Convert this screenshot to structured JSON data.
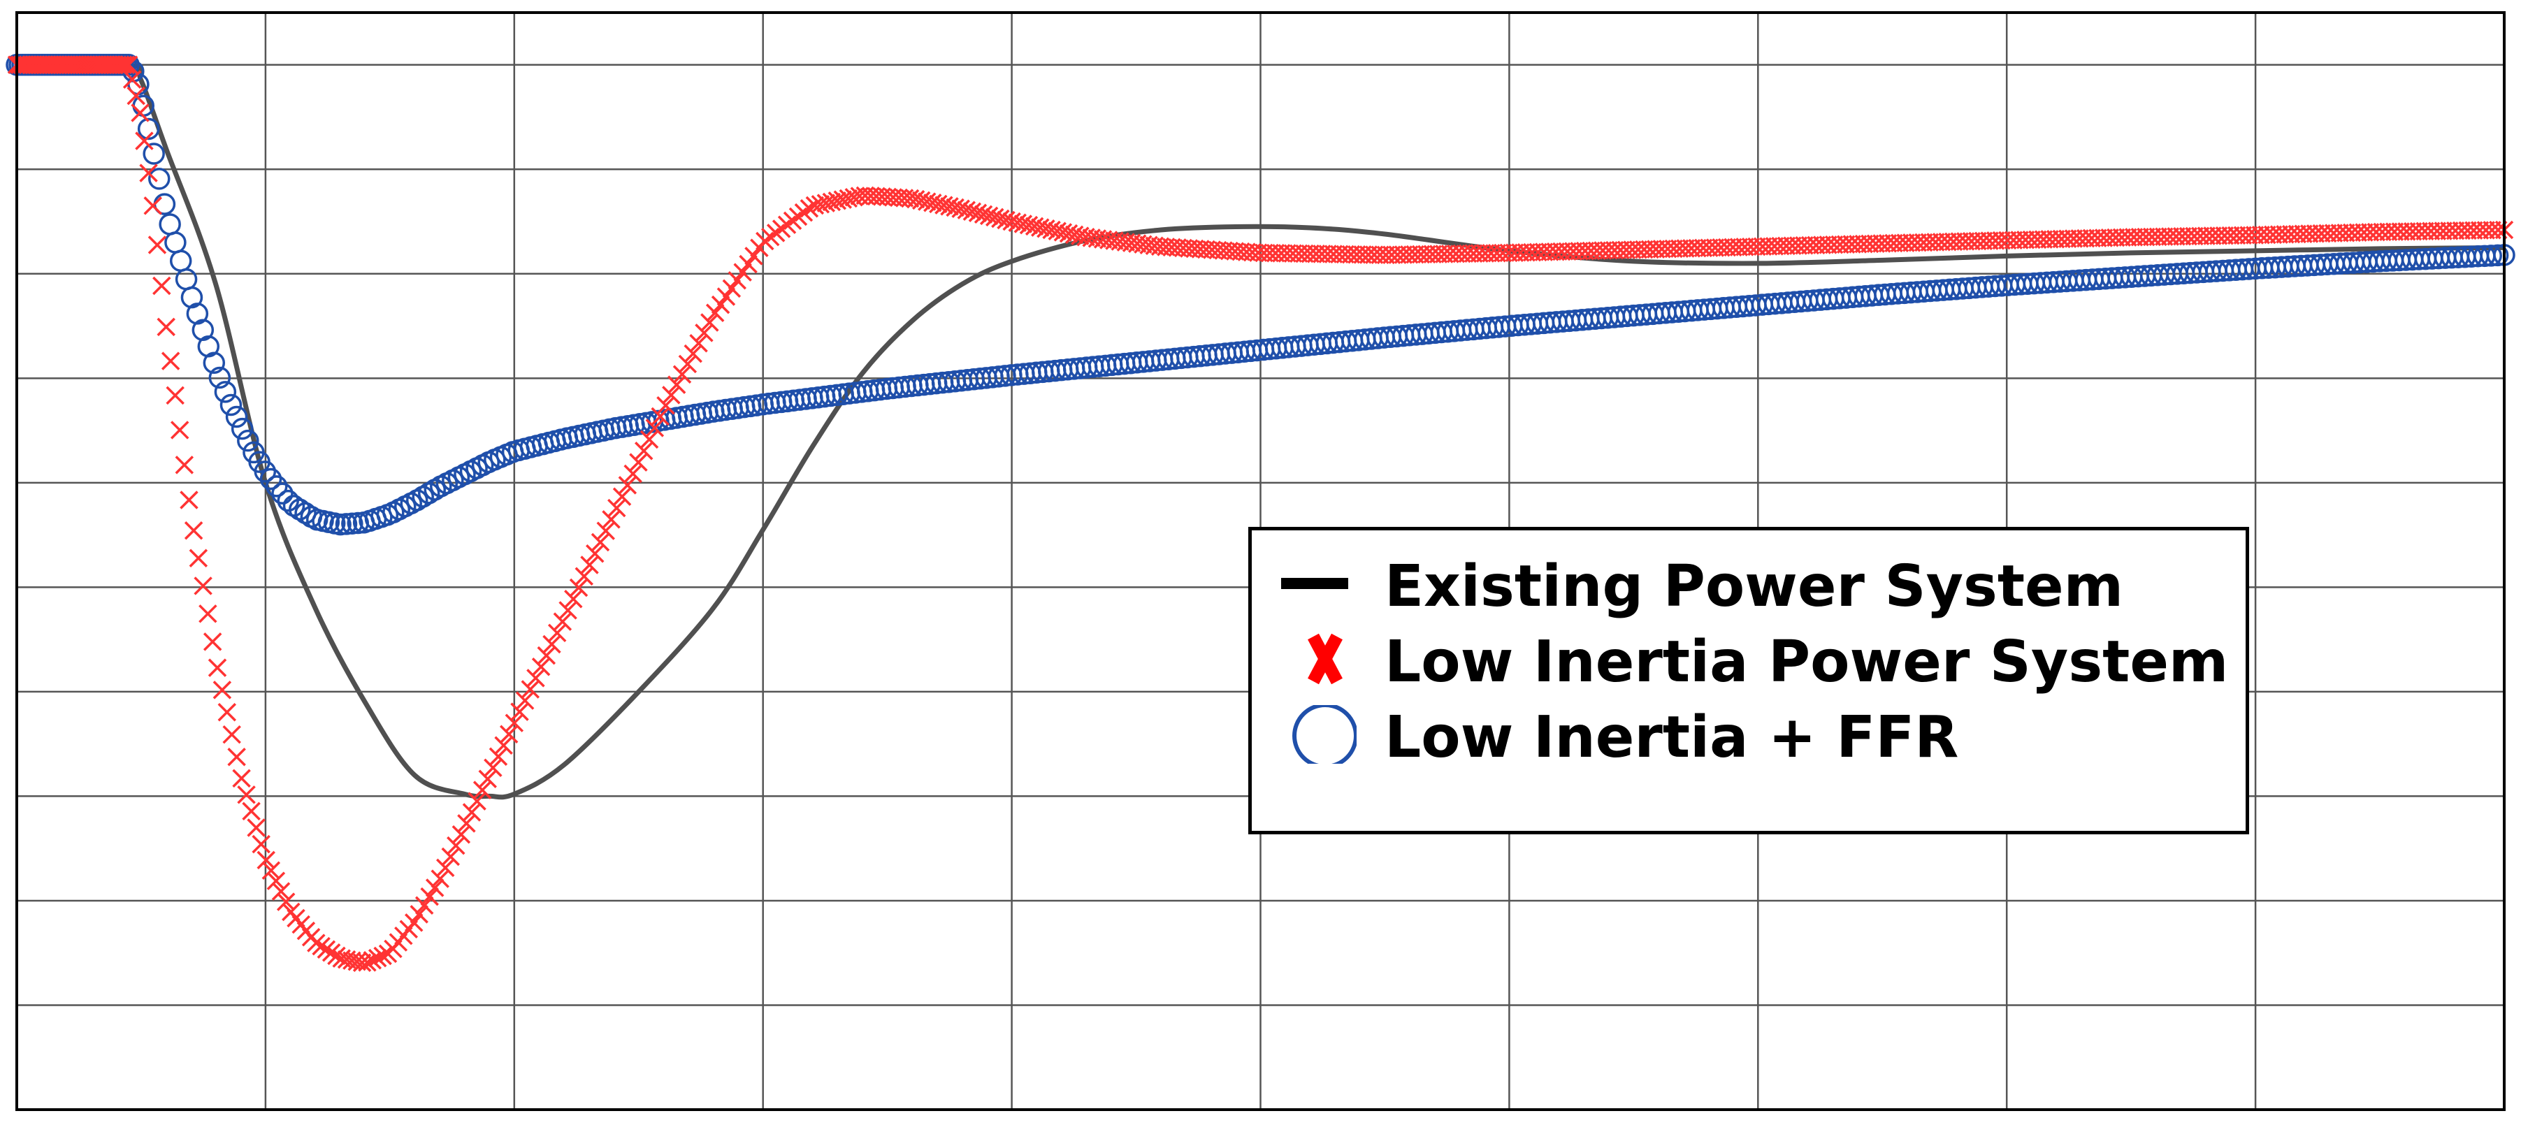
{
  "chart_data": {
    "type": "scatter",
    "title": "",
    "xlabel": "",
    "ylabel": "",
    "xlim": [
      0,
      10
    ],
    "ylim": [
      0,
      10.5
    ],
    "grid": true,
    "tick_labels_visible": false,
    "legend_position": "center-right",
    "series": [
      {
        "name": "Existing Power System",
        "marker": "line",
        "color": "#505050",
        "x": [
          0,
          0.45,
          0.5,
          0.6,
          0.8,
          1.0,
          1.2,
          1.4,
          1.6,
          1.8,
          1.9,
          2.0,
          2.2,
          2.5,
          2.8,
          3.0,
          3.2,
          3.4,
          3.6,
          3.8,
          4.0,
          4.3,
          4.6,
          4.9,
          5.2,
          5.5,
          6.0,
          6.5,
          7.0,
          7.5,
          8.0,
          8.5,
          9.0,
          9.5,
          10.0
        ],
        "values": [
          10.0,
          10.0,
          9.85,
          9.2,
          7.9,
          6.0,
          4.8,
          3.9,
          3.2,
          3.02,
          3.0,
          3.02,
          3.3,
          4.0,
          4.8,
          5.55,
          6.35,
          7.05,
          7.55,
          7.9,
          8.12,
          8.32,
          8.42,
          8.45,
          8.44,
          8.38,
          8.22,
          8.12,
          8.1,
          8.13,
          8.17,
          8.2,
          8.22,
          8.24,
          8.25
        ]
      },
      {
        "name": "Low Inertia Power System",
        "marker": "x",
        "color": "#ff3333",
        "x": [
          0,
          0.45,
          0.5,
          0.55,
          0.6,
          0.7,
          0.8,
          0.9,
          1.0,
          1.1,
          1.2,
          1.3,
          1.4,
          1.5,
          1.6,
          1.7,
          1.8,
          1.9,
          2.0,
          2.2,
          2.4,
          2.6,
          2.8,
          3.0,
          3.2,
          3.4,
          3.6,
          3.8,
          4.0,
          4.3,
          4.6,
          5.0,
          5.5,
          6.0,
          6.5,
          7.0,
          7.5,
          8.0,
          8.5,
          9.0,
          9.5,
          10.0
        ],
        "values": [
          10.0,
          10.0,
          9.5,
          8.6,
          7.5,
          5.7,
          4.3,
          3.2,
          2.4,
          1.9,
          1.6,
          1.45,
          1.4,
          1.5,
          1.8,
          2.2,
          2.7,
          3.2,
          3.7,
          4.7,
          5.7,
          6.7,
          7.6,
          8.3,
          8.65,
          8.75,
          8.72,
          8.62,
          8.5,
          8.35,
          8.26,
          8.2,
          8.18,
          8.2,
          8.23,
          8.26,
          8.29,
          8.32,
          8.35,
          8.37,
          8.4,
          8.42
        ]
      },
      {
        "name": "Low Inertia + FFR",
        "marker": "o",
        "color": "#1f4faa",
        "x": [
          0,
          0.45,
          0.48,
          0.52,
          0.56,
          0.6,
          0.65,
          0.7,
          0.75,
          0.8,
          0.85,
          0.9,
          0.95,
          1.0,
          1.1,
          1.2,
          1.3,
          1.4,
          1.5,
          1.6,
          1.7,
          1.8,
          1.9,
          2.0,
          2.2,
          2.4,
          2.6,
          2.8,
          3.0,
          3.5,
          4.0,
          4.5,
          5.0,
          5.5,
          6.0,
          6.5,
          7.0,
          7.5,
          8.0,
          8.5,
          9.0,
          9.5,
          10.0
        ],
        "values": [
          10.0,
          10.0,
          9.9,
          9.5,
          9.05,
          8.6,
          8.2,
          7.8,
          7.45,
          7.1,
          6.8,
          6.55,
          6.3,
          6.1,
          5.8,
          5.65,
          5.6,
          5.62,
          5.7,
          5.82,
          5.96,
          6.08,
          6.2,
          6.3,
          6.42,
          6.52,
          6.6,
          6.68,
          6.75,
          6.9,
          7.03,
          7.15,
          7.27,
          7.39,
          7.5,
          7.6,
          7.7,
          7.8,
          7.89,
          7.97,
          8.05,
          8.12,
          8.18
        ]
      }
    ]
  }
}
